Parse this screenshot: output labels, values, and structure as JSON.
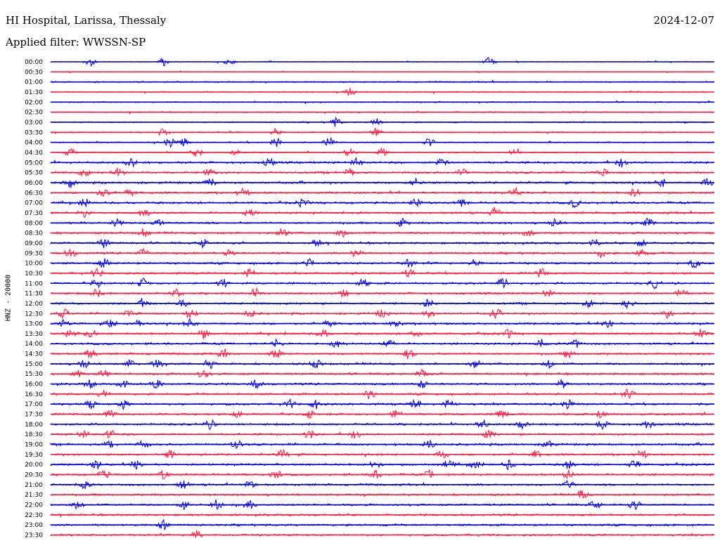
{
  "header": {
    "station": "HI Hospital, Larissa, Thessaly",
    "date": "2024-12-07",
    "filter": "Applied filter: WWSSN-SP"
  },
  "chart_data": {
    "type": "line",
    "title": "HI Hospital, Larissa, Thessaly",
    "subtitle": "Applied filter: WWSSN-SP",
    "date": "2024-12-07",
    "ylabel": "HNZ - 20000",
    "xlabel": "",
    "grid": false,
    "colors": [
      "#0000e6",
      "#ff1a40"
    ],
    "series": [
      {
        "label": "00:00",
        "events": [
          0.06,
          0.17,
          0.27,
          0.66
        ]
      },
      {
        "label": "00:30",
        "events": []
      },
      {
        "label": "01:00",
        "events": []
      },
      {
        "label": "01:30",
        "events": [
          0.45
        ]
      },
      {
        "label": "02:00",
        "events": []
      },
      {
        "label": "02:30",
        "events": []
      },
      {
        "label": "03:00",
        "events": [
          0.43,
          0.49
        ]
      },
      {
        "label": "03:30",
        "events": [
          0.17,
          0.34,
          0.49
        ]
      },
      {
        "label": "04:00",
        "events": [
          0.18,
          0.2,
          0.34,
          0.42,
          0.57
        ]
      },
      {
        "label": "04:30",
        "events": [
          0.03,
          0.22,
          0.28,
          0.45,
          0.5,
          0.7
        ]
      },
      {
        "label": "05:00",
        "events": [
          0.12,
          0.33,
          0.46,
          0.59,
          0.86
        ]
      },
      {
        "label": "05:30",
        "events": [
          0.05,
          0.1,
          0.24,
          0.45,
          0.62,
          0.83
        ]
      },
      {
        "label": "06:00",
        "events": [
          0.03,
          0.24,
          0.55,
          0.92,
          0.99
        ]
      },
      {
        "label": "06:30",
        "events": [
          0.08,
          0.12,
          0.29,
          0.7,
          0.88
        ]
      },
      {
        "label": "07:00",
        "events": [
          0.05,
          0.38,
          0.55,
          0.62,
          0.79
        ]
      },
      {
        "label": "07:30",
        "events": [
          0.05,
          0.14,
          0.3,
          0.67
        ]
      },
      {
        "label": "08:00",
        "events": [
          0.1,
          0.16,
          0.53,
          0.76,
          0.9
        ]
      },
      {
        "label": "08:30",
        "events": [
          0.14,
          0.35,
          0.44,
          0.72
        ]
      },
      {
        "label": "09:00",
        "events": [
          0.08,
          0.23,
          0.4,
          0.82,
          0.89
        ]
      },
      {
        "label": "09:30",
        "events": [
          0.03,
          0.14,
          0.27,
          0.46,
          0.83,
          0.89
        ]
      },
      {
        "label": "10:00",
        "events": [
          0.08,
          0.39,
          0.54,
          0.64,
          0.97
        ]
      },
      {
        "label": "10:30",
        "events": [
          0.07,
          0.3,
          0.54,
          0.74
        ]
      },
      {
        "label": "11:00",
        "events": [
          0.07,
          0.14,
          0.26,
          0.47,
          0.68,
          0.91
        ]
      },
      {
        "label": "11:30",
        "events": [
          0.07,
          0.19,
          0.31,
          0.44,
          0.75,
          0.95
        ]
      },
      {
        "label": "12:00",
        "events": [
          0.14,
          0.2,
          0.57,
          0.81,
          0.87
        ]
      },
      {
        "label": "12:30",
        "events": [
          0.02,
          0.12,
          0.21,
          0.3,
          0.5,
          0.57,
          0.67,
          0.93
        ]
      },
      {
        "label": "13:00",
        "events": [
          0.02,
          0.09,
          0.13,
          0.21,
          0.42,
          0.52,
          0.84
        ]
      },
      {
        "label": "13:30",
        "events": [
          0.03,
          0.06,
          0.23,
          0.41,
          0.55,
          0.69,
          0.98
        ]
      },
      {
        "label": "14:00",
        "events": [
          0.34,
          0.43,
          0.51,
          0.74,
          0.79
        ]
      },
      {
        "label": "14:30",
        "events": [
          0.06,
          0.26,
          0.34,
          0.54,
          0.78
        ]
      },
      {
        "label": "15:00",
        "events": [
          0.05,
          0.12,
          0.16,
          0.24,
          0.4,
          0.64,
          0.75
        ]
      },
      {
        "label": "15:30",
        "events": [
          0.04,
          0.08,
          0.23,
          0.56
        ]
      },
      {
        "label": "16:00",
        "events": [
          0.06,
          0.11,
          0.16,
          0.31,
          0.56,
          0.77
        ]
      },
      {
        "label": "16:30",
        "events": [
          0.08,
          0.48,
          0.87
        ]
      },
      {
        "label": "17:00",
        "events": [
          0.06,
          0.11,
          0.36,
          0.4,
          0.55,
          0.6,
          0.78
        ]
      },
      {
        "label": "17:30",
        "events": [
          0.09,
          0.28,
          0.39,
          0.52,
          0.68,
          0.83
        ]
      },
      {
        "label": "18:00",
        "events": [
          0.24,
          0.65,
          0.71,
          0.83,
          0.9
        ]
      },
      {
        "label": "18:30",
        "events": [
          0.05,
          0.09,
          0.39,
          0.46,
          0.66
        ]
      },
      {
        "label": "19:00",
        "events": [
          0.09,
          0.14,
          0.28,
          0.57,
          0.75
        ]
      },
      {
        "label": "19:30",
        "events": [
          0.18,
          0.35,
          0.59,
          0.73,
          0.89
        ]
      },
      {
        "label": "20:00",
        "events": [
          0.07,
          0.13,
          0.49,
          0.6,
          0.64,
          0.69,
          0.78,
          0.88
        ]
      },
      {
        "label": "20:30",
        "events": [
          0.08,
          0.17,
          0.34,
          0.49,
          0.57,
          0.78
        ]
      },
      {
        "label": "21:00",
        "events": [
          0.05,
          0.2,
          0.3,
          0.78
        ]
      },
      {
        "label": "21:30",
        "events": [
          0.8
        ]
      },
      {
        "label": "22:00",
        "events": [
          0.04,
          0.2,
          0.25,
          0.3,
          0.82,
          0.88
        ]
      },
      {
        "label": "22:30",
        "events": []
      },
      {
        "label": "23:00",
        "events": [
          0.17
        ]
      },
      {
        "label": "23:30",
        "events": [
          0.22
        ]
      }
    ]
  }
}
